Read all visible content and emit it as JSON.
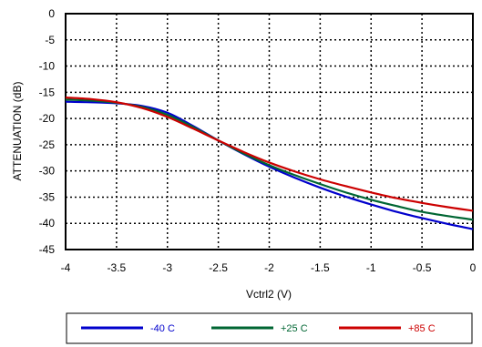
{
  "chart_data": {
    "type": "line",
    "title": "",
    "xlabel": "Vctrl2 (V)",
    "ylabel": "ATTENUATION (dB)",
    "xlim": [
      -4,
      0
    ],
    "ylim": [
      -45,
      0
    ],
    "x_ticks": [
      -4,
      -3.5,
      -3,
      -2.5,
      -2,
      -1.5,
      -1,
      -0.5,
      0
    ],
    "x_tick_labels": [
      "-4",
      "-3.5",
      "-3",
      "-2.5",
      "-2",
      "-1.5",
      "-1",
      "-0.5",
      "0"
    ],
    "y_ticks": [
      0,
      -5,
      -10,
      -15,
      -20,
      -25,
      -30,
      -35,
      -40,
      -45
    ],
    "y_tick_labels": [
      "0",
      "-5",
      "-10",
      "-15",
      "-20",
      "-25",
      "-30",
      "-35",
      "-40",
      "-45"
    ],
    "grid": true,
    "grid_style": "dotted",
    "legend_position": "bottom",
    "x": [
      -4,
      -3.75,
      -3.5,
      -3.25,
      -3,
      -2.75,
      -2.5,
      -2.25,
      -2,
      -1.75,
      -1.5,
      -1.25,
      -1,
      -0.75,
      -0.5,
      -0.25,
      0
    ],
    "series": [
      {
        "name": "-40 C",
        "color": "#0000cc",
        "values": [
          -16.8,
          -16.9,
          -17.1,
          -17.6,
          -18.9,
          -21.4,
          -24.2,
          -26.8,
          -29.2,
          -31.3,
          -33.2,
          -34.9,
          -36.4,
          -37.8,
          -39.0,
          -40.1,
          -41.1
        ]
      },
      {
        "name": "+25 C",
        "color": "#006633",
        "values": [
          -16.4,
          -16.6,
          -17.0,
          -17.8,
          -19.3,
          -21.6,
          -24.2,
          -26.7,
          -28.9,
          -30.8,
          -32.5,
          -34.1,
          -35.5,
          -36.7,
          -37.8,
          -38.6,
          -39.3
        ]
      },
      {
        "name": "+85 C",
        "color": "#cc0000",
        "values": [
          -16.0,
          -16.3,
          -16.9,
          -18.0,
          -19.7,
          -21.9,
          -24.2,
          -26.4,
          -28.4,
          -30.1,
          -31.6,
          -32.9,
          -34.1,
          -35.2,
          -36.1,
          -36.9,
          -37.6
        ]
      }
    ]
  }
}
